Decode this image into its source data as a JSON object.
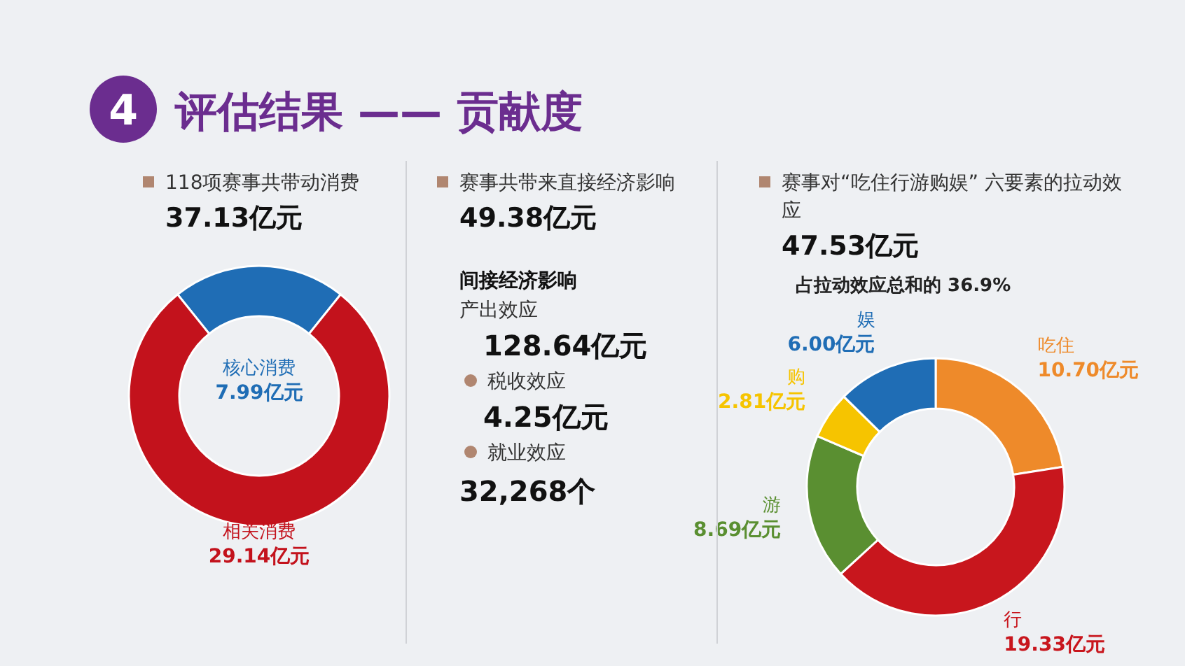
{
  "chart_data": [
    {
      "type": "other",
      "title": "评估结果 —— 贡献度",
      "annotations": [
        "4"
      ]
    },
    {
      "type": "donut",
      "title": "118项赛事共带动消费",
      "subtitle": "37.13亿元",
      "categories": [
        "核心消费",
        "相关消费"
      ],
      "values": [
        7.99,
        29.14
      ],
      "colors": [
        "#1f6db5",
        "#c3121c"
      ],
      "value_labels": [
        "7.99亿元",
        "29.14亿元"
      ]
    },
    {
      "type": "other",
      "title": "赛事共带来直接经济影响",
      "annotations": [
        "49.38亿元",
        "间接经济影响",
        "产出效应",
        "128.64亿元",
        "税收效应",
        "4.25亿元",
        "就业效应",
        "32,268个"
      ]
    },
    {
      "type": "donut",
      "title": "赛事对“吃住行游购娱” 六要素的拉动效应",
      "subtitle": "47.53亿元",
      "annotations": [
        "占拉动效应总和的 36.9%"
      ],
      "categories": [
        "吃住",
        "行",
        "游",
        "购",
        "娱"
      ],
      "values": [
        10.7,
        19.33,
        8.69,
        2.81,
        6.0
      ],
      "colors": [
        "#ee8a2a",
        "#c8161d",
        "#5a8f31",
        "#f6c400",
        "#1f6db5"
      ],
      "value_labels": [
        "10.70亿元",
        "19.33亿元",
        "8.69亿元",
        "2.81亿元",
        "6.00亿元"
      ]
    }
  ]
}
